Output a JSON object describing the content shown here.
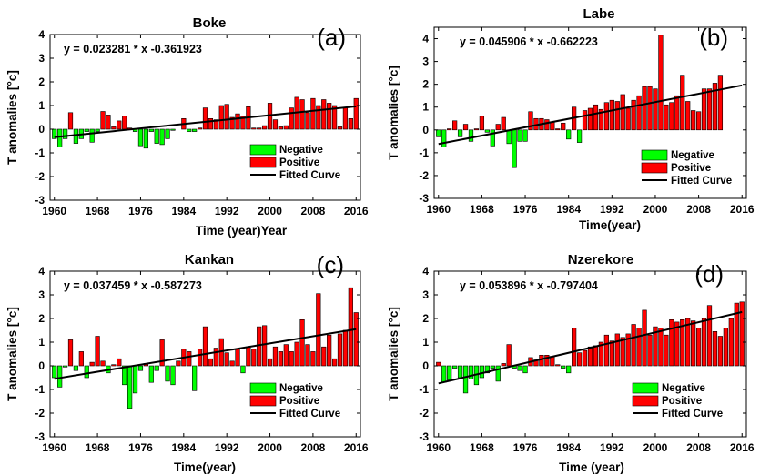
{
  "colors": {
    "negative": "#00ff00",
    "positive": "#ff0000",
    "fit": "#000000",
    "edge": "#000000"
  },
  "chart_data": [
    {
      "type": "bar",
      "title": "Boke",
      "panel_label": "(a)",
      "equation": "y = 0.023281 * x -0.361923",
      "fit": {
        "slope": 0.023281,
        "intercept": -0.361923
      },
      "xlabel": "Time (year)Year",
      "ylabel": "T anomalies [°c]",
      "xlim": [
        1960,
        2016
      ],
      "ylim": [
        -3,
        4
      ],
      "xticks": [
        "1960",
        "1968",
        "1976",
        "1984",
        "1992",
        "2000",
        "2008",
        "2016"
      ],
      "yticks": [
        "-3",
        "-2",
        "-1",
        "0",
        "1",
        "2",
        "3",
        "4"
      ],
      "legend": [
        "Negative",
        "Positive",
        "Fitted Curve"
      ],
      "legend_position": "bottom-right",
      "grid": false,
      "x": [
        1960,
        1961,
        1962,
        1963,
        1964,
        1965,
        1966,
        1967,
        1968,
        1969,
        1970,
        1971,
        1972,
        1973,
        1974,
        1975,
        1976,
        1977,
        1978,
        1979,
        1980,
        1981,
        1982,
        1983,
        1984,
        1985,
        1986,
        1987,
        1988,
        1989,
        1990,
        1991,
        1992,
        1993,
        1994,
        1995,
        1996,
        1997,
        1998,
        1999,
        2000,
        2001,
        2002,
        2003,
        2004,
        2005,
        2006,
        2007,
        2008,
        2009,
        2010,
        2011,
        2012,
        2013,
        2014,
        2015,
        2016
      ],
      "values": [
        -0.4,
        -0.75,
        -0.4,
        0.7,
        -0.6,
        -0.4,
        -0.1,
        -0.55,
        -0.1,
        0.75,
        0.6,
        0.1,
        0.35,
        0.55,
        0.05,
        -0.1,
        -0.7,
        -0.8,
        -0.1,
        -0.6,
        -0.65,
        -0.4,
        -0.05,
        0.0,
        0.45,
        -0.1,
        -0.1,
        0.05,
        0.9,
        0.45,
        0.4,
        1.0,
        1.05,
        0.5,
        0.65,
        0.55,
        0.95,
        0.05,
        0.05,
        0.15,
        1.1,
        0.4,
        0.1,
        0.15,
        0.9,
        1.35,
        1.25,
        0.7,
        1.3,
        1.0,
        1.25,
        1.1,
        1.0,
        0.1,
        0.9,
        0.45,
        1.3
      ]
    },
    {
      "type": "bar",
      "title": "Labe",
      "panel_label": "(b)",
      "equation": "y = 0.045906 * x -0.662223",
      "fit": {
        "slope": 0.045906,
        "intercept": -0.662223
      },
      "xlabel": "Time(year)",
      "ylabel": "T anomalies [°c]",
      "xlim": [
        1960,
        2016
      ],
      "ylim": [
        -3,
        4.5
      ],
      "xticks": [
        "1960",
        "1968",
        "1976",
        "1984",
        "1992",
        "2000",
        "2008",
        "2016"
      ],
      "yticks": [
        "-3",
        "-2",
        "-1",
        "0",
        "1",
        "2",
        "3",
        "4"
      ],
      "legend": [
        "Negative",
        "Positive",
        "Fitted Curve"
      ],
      "legend_position": "bottom-right",
      "grid": false,
      "x": [
        1960,
        1961,
        1962,
        1963,
        1964,
        1965,
        1966,
        1967,
        1968,
        1969,
        1970,
        1971,
        1972,
        1973,
        1974,
        1975,
        1976,
        1977,
        1978,
        1979,
        1980,
        1981,
        1982,
        1983,
        1984,
        1985,
        1986,
        1987,
        1988,
        1989,
        1990,
        1991,
        1992,
        1993,
        1994,
        1995,
        1996,
        1997,
        1998,
        1999,
        2000,
        2001,
        2002,
        2003,
        2004,
        2005,
        2006,
        2007,
        2008,
        2009,
        2010,
        2011,
        2012,
        2013,
        2014,
        2015,
        2016
      ],
      "values": [
        -0.3,
        -0.75,
        0.05,
        0.4,
        -0.3,
        0.25,
        -0.5,
        0.05,
        0.6,
        -0.1,
        -0.7,
        0.25,
        0.55,
        -0.6,
        -1.65,
        -0.5,
        -0.5,
        0.8,
        0.5,
        0.5,
        0.45,
        0.35,
        0.05,
        0.3,
        -0.4,
        1.0,
        -0.55,
        0.85,
        0.95,
        1.1,
        0.9,
        1.2,
        1.3,
        1.25,
        1.55,
        0.95,
        1.3,
        1.5,
        1.9,
        1.9,
        1.8,
        4.15,
        1.1,
        1.2,
        1.5,
        2.4,
        1.25,
        0.85,
        0.8,
        1.8,
        1.8,
        2.05,
        2.4,
        0,
        0,
        0,
        0
      ]
    },
    {
      "type": "bar",
      "title": "Kankan",
      "panel_label": "(c)",
      "equation": "y = 0.037459 * x -0.587273",
      "fit": {
        "slope": 0.037459,
        "intercept": -0.587273
      },
      "xlabel": "Time(year)",
      "ylabel": "T anomalies [°c]",
      "xlim": [
        1960,
        2016
      ],
      "ylim": [
        -3,
        4
      ],
      "xticks": [
        "1960",
        "1968",
        "1976",
        "1984",
        "1992",
        "2000",
        "2008",
        "2016"
      ],
      "yticks": [
        "-3",
        "-2",
        "-1",
        "0",
        "1",
        "2",
        "3",
        "4"
      ],
      "legend": [
        "Negative",
        "Positive",
        "Fitted Curve"
      ],
      "legend_position": "bottom-right",
      "grid": false,
      "x": [
        1960,
        1961,
        1962,
        1963,
        1964,
        1965,
        1966,
        1967,
        1968,
        1969,
        1970,
        1971,
        1972,
        1973,
        1974,
        1975,
        1976,
        1977,
        1978,
        1979,
        1980,
        1981,
        1982,
        1983,
        1984,
        1985,
        1986,
        1987,
        1988,
        1989,
        1990,
        1991,
        1992,
        1993,
        1994,
        1995,
        1996,
        1997,
        1998,
        1999,
        2000,
        2001,
        2002,
        2003,
        2004,
        2005,
        2006,
        2007,
        2008,
        2009,
        2010,
        2011,
        2012,
        2013,
        2014,
        2015,
        2016
      ],
      "values": [
        -0.5,
        -0.9,
        -0.05,
        1.1,
        -0.2,
        0.6,
        -0.5,
        0.15,
        1.25,
        0.2,
        -0.3,
        0.05,
        0.3,
        -0.8,
        -1.8,
        -1.15,
        -0.2,
        0.1,
        -0.7,
        -0.2,
        1.1,
        -0.65,
        -0.8,
        0.2,
        0.7,
        0.6,
        -1.05,
        0.7,
        1.65,
        0.3,
        0.75,
        1.15,
        0.55,
        0.2,
        0.7,
        -0.3,
        0.8,
        0.7,
        1.65,
        1.7,
        0.3,
        0.8,
        0.6,
        0.9,
        0.6,
        1.0,
        1.95,
        0.9,
        0.6,
        3.05,
        0.8,
        1.3,
        0.3,
        1.35,
        1.5,
        3.3,
        2.25
      ]
    },
    {
      "type": "bar",
      "title": "Nzerekore",
      "panel_label": "(d)",
      "equation": "y = 0.053896 * x -0.797404",
      "fit": {
        "slope": 0.053896,
        "intercept": -0.797404
      },
      "xlabel": "Time (year)",
      "ylabel": "T anomalies [°c]",
      "xlim": [
        1960,
        2016
      ],
      "ylim": [
        -3,
        4
      ],
      "xticks": [
        "1960",
        "1968",
        "1976",
        "1984",
        "1992",
        "2000",
        "2008",
        "2016"
      ],
      "yticks": [
        "-3",
        "-2",
        "-1",
        "0",
        "1",
        "2",
        "3",
        "4"
      ],
      "legend": [
        "Negative",
        "Positive",
        "Fitted Curve"
      ],
      "legend_position": "bottom-right",
      "grid": false,
      "x": [
        1960,
        1961,
        1962,
        1963,
        1964,
        1965,
        1966,
        1967,
        1968,
        1969,
        1970,
        1971,
        1972,
        1973,
        1974,
        1975,
        1976,
        1977,
        1978,
        1979,
        1980,
        1981,
        1982,
        1983,
        1984,
        1985,
        1986,
        1987,
        1988,
        1989,
        1990,
        1991,
        1992,
        1993,
        1994,
        1995,
        1996,
        1997,
        1998,
        1999,
        2000,
        2001,
        2002,
        2003,
        2004,
        2005,
        2006,
        2007,
        2008,
        2009,
        2010,
        2011,
        2012,
        2013,
        2014,
        2015,
        2016
      ],
      "values": [
        0.15,
        -0.7,
        -0.6,
        -0.1,
        -0.5,
        -1.15,
        -0.55,
        -0.8,
        -0.5,
        -0.3,
        -0.1,
        -0.65,
        0.1,
        0.9,
        -0.1,
        -0.2,
        -0.3,
        0.35,
        0.25,
        0.45,
        0.45,
        0.4,
        0.05,
        -0.1,
        -0.3,
        1.6,
        0.55,
        0.65,
        0.8,
        0.85,
        1.0,
        1.3,
        1.05,
        1.35,
        1.2,
        1.35,
        1.75,
        1.6,
        2.35,
        1.3,
        1.65,
        1.6,
        1.3,
        1.95,
        1.85,
        1.95,
        2.0,
        1.9,
        1.6,
        2.0,
        2.55,
        1.45,
        1.25,
        1.6,
        2.0,
        2.65,
        2.7
      ]
    }
  ]
}
